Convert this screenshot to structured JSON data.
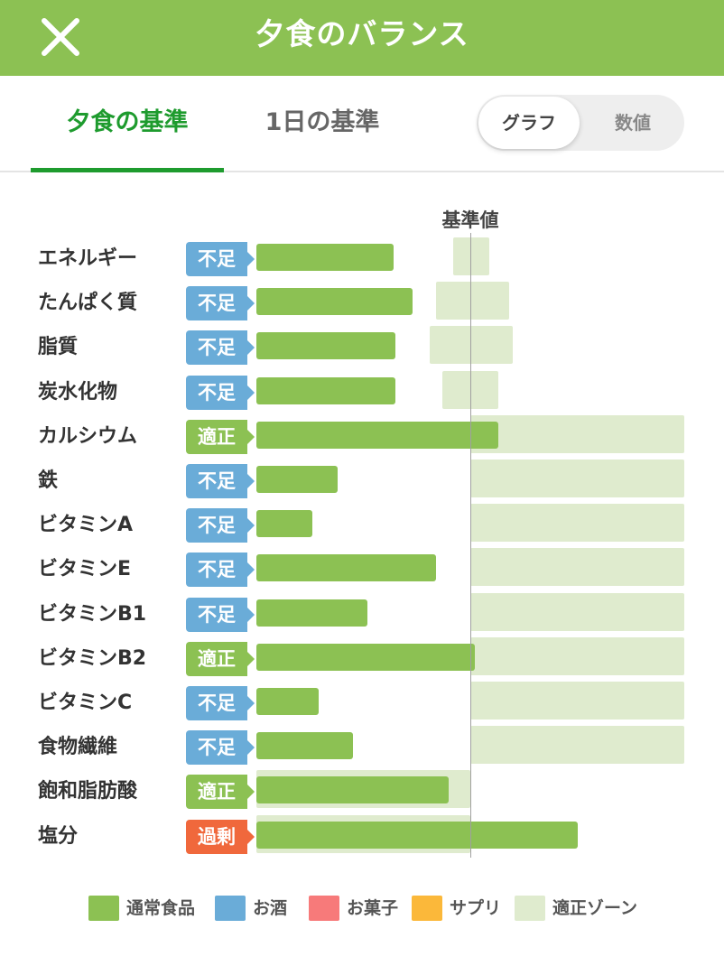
{
  "header": {
    "title": "夕食のバランス",
    "close_icon": "close-icon"
  },
  "tabs": [
    {
      "label": "夕食の基準",
      "active": true
    },
    {
      "label": "1日の基準",
      "active": false
    }
  ],
  "view_toggle": {
    "options": [
      "グラフ",
      "数値"
    ],
    "selected": "グラフ"
  },
  "chart_data": {
    "type": "bar",
    "reference_label": "基準値",
    "rows": [
      {
        "nutrient": "エネルギー",
        "status": "不足",
        "status_type": "lack",
        "value": 0.64,
        "zone": [
          0.92,
          1.09
        ]
      },
      {
        "nutrient": "たんぱく質",
        "status": "不足",
        "status_type": "lack",
        "value": 0.73,
        "zone": [
          0.84,
          1.18
        ]
      },
      {
        "nutrient": "脂質",
        "status": "不足",
        "status_type": "lack",
        "value": 0.65,
        "zone": [
          0.81,
          1.2
        ]
      },
      {
        "nutrient": "炭水化物",
        "status": "不足",
        "status_type": "lack",
        "value": 0.65,
        "zone": [
          0.87,
          1.13
        ]
      },
      {
        "nutrient": "カルシウム",
        "status": "適正",
        "status_type": "ok",
        "value": 1.13,
        "zone": [
          1.0,
          2.0
        ]
      },
      {
        "nutrient": "鉄",
        "status": "不足",
        "status_type": "lack",
        "value": 0.38,
        "zone": [
          1.0,
          2.0
        ]
      },
      {
        "nutrient": "ビタミンA",
        "status": "不足",
        "status_type": "lack",
        "value": 0.26,
        "zone": [
          1.0,
          2.0
        ]
      },
      {
        "nutrient": "ビタミンE",
        "status": "不足",
        "status_type": "lack",
        "value": 0.84,
        "zone": [
          1.0,
          2.0
        ]
      },
      {
        "nutrient": "ビタミンB1",
        "status": "不足",
        "status_type": "lack",
        "value": 0.52,
        "zone": [
          1.0,
          2.0
        ]
      },
      {
        "nutrient": "ビタミンB2",
        "status": "適正",
        "status_type": "ok",
        "value": 1.02,
        "zone": [
          1.0,
          2.0
        ]
      },
      {
        "nutrient": "ビタミンC",
        "status": "不足",
        "status_type": "lack",
        "value": 0.29,
        "zone": [
          1.0,
          2.0
        ]
      },
      {
        "nutrient": "食物繊維",
        "status": "不足",
        "status_type": "lack",
        "value": 0.45,
        "zone": [
          1.0,
          2.0
        ]
      },
      {
        "nutrient": "飽和脂肪酸",
        "status": "適正",
        "status_type": "ok",
        "value": 0.9,
        "zone": [
          0.0,
          1.0
        ]
      },
      {
        "nutrient": "塩分",
        "status": "過剰",
        "status_type": "over",
        "value": 1.5,
        "zone": [
          0.0,
          1.0
        ]
      }
    ],
    "legend": [
      {
        "label": "通常食品",
        "color": "#8cc153"
      },
      {
        "label": "お酒",
        "color": "#6aacd8"
      },
      {
        "label": "お菓子",
        "color": "#f77a7a"
      },
      {
        "label": "サプリ",
        "color": "#fbb83a"
      },
      {
        "label": "適正ゾーン",
        "color": "#dfebce"
      }
    ]
  }
}
